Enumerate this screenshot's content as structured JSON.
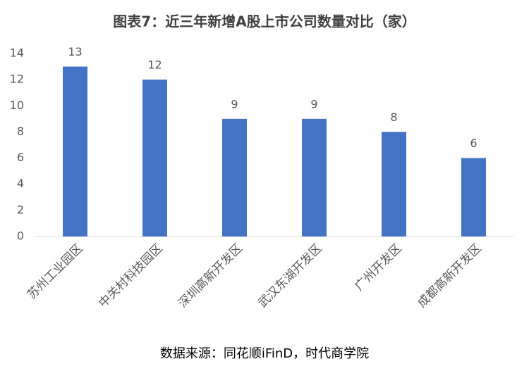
{
  "chart_data": {
    "type": "bar",
    "title": "图表7：近三年新增A股上市公司数量对比（家）",
    "categories": [
      "苏州工业园区",
      "中关村科技园区",
      "深圳高新开发区",
      "武汉东湖开发区",
      "广州开发区",
      "成都高新开发区"
    ],
    "values": [
      13,
      12,
      9,
      9,
      8,
      6
    ],
    "color": "#4472c4",
    "ylim": [
      0,
      14
    ],
    "yticks": [
      0,
      2,
      4,
      6,
      8,
      10,
      12,
      14
    ],
    "grid": false,
    "source": "数据来源：同花顺iFinD，时代商学院"
  }
}
